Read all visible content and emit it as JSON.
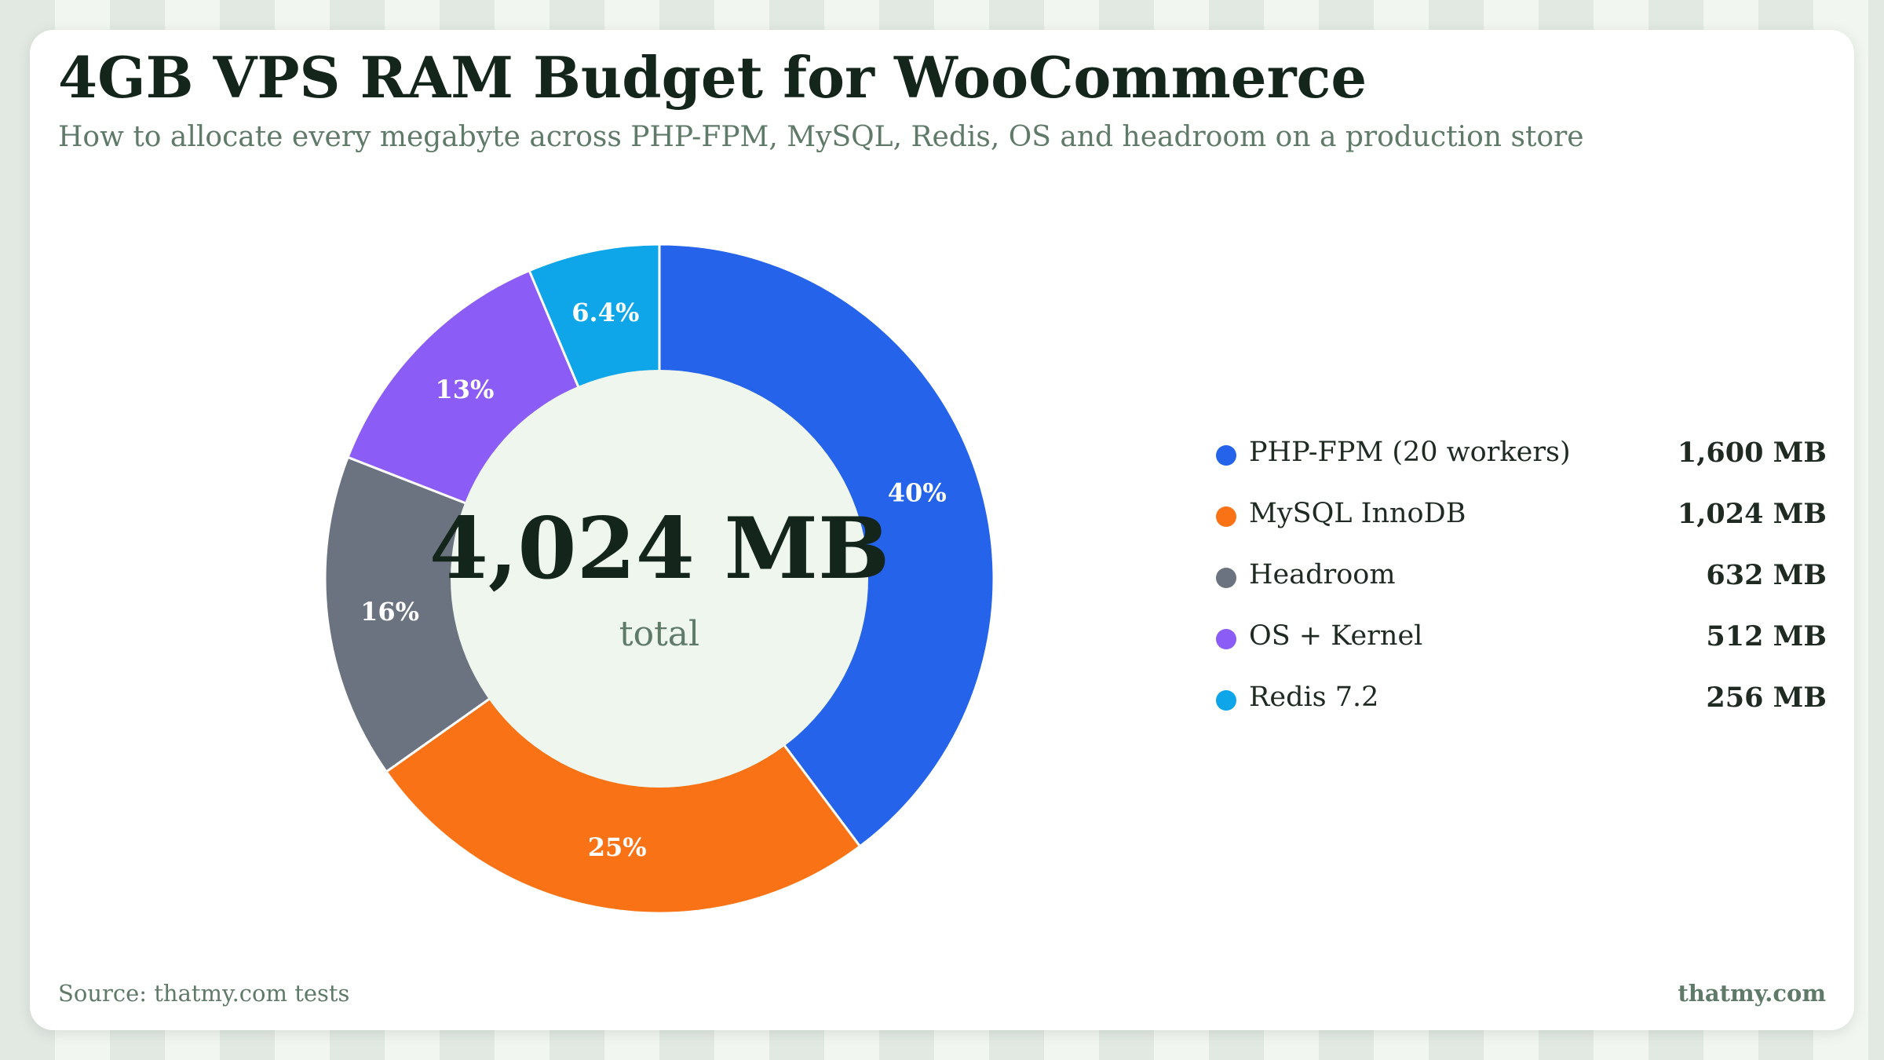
{
  "header": {
    "title": "4GB VPS RAM Budget for WooCommerce",
    "subtitle": "How to allocate every megabyte across PHP-FPM, MySQL, Redis, OS and headroom on a production store"
  },
  "center": {
    "total_value": "4,024 MB",
    "total_label": "total"
  },
  "legend": [
    {
      "label": "PHP-FPM (20 workers)",
      "value": "1,600 MB",
      "color": "#2563eb"
    },
    {
      "label": "MySQL InnoDB",
      "value": "1,024 MB",
      "color": "#f97316"
    },
    {
      "label": "Headroom",
      "value": "632 MB",
      "color": "#6b7280"
    },
    {
      "label": "OS + Kernel",
      "value": "512 MB",
      "color": "#8b5cf6"
    },
    {
      "label": "Redis 7.2",
      "value": "256 MB",
      "color": "#0ea5e9"
    }
  ],
  "footer": {
    "source": "Source: thatmy.com tests",
    "brand": "thatmy.com"
  },
  "chart_data": {
    "type": "pie",
    "categories": [
      "PHP-FPM (20 workers)",
      "MySQL InnoDB",
      "Headroom",
      "OS + Kernel",
      "Redis 7.2"
    ],
    "values": [
      1600,
      1024,
      632,
      512,
      256
    ],
    "unit": "MB",
    "slice_labels": [
      "40%",
      "25%",
      "16%",
      "13%",
      "6.4%"
    ],
    "colors": [
      "#2563eb",
      "#f97316",
      "#6b7280",
      "#8b5cf6",
      "#0ea5e9"
    ],
    "hole": "center-total",
    "legend_position": "right"
  }
}
